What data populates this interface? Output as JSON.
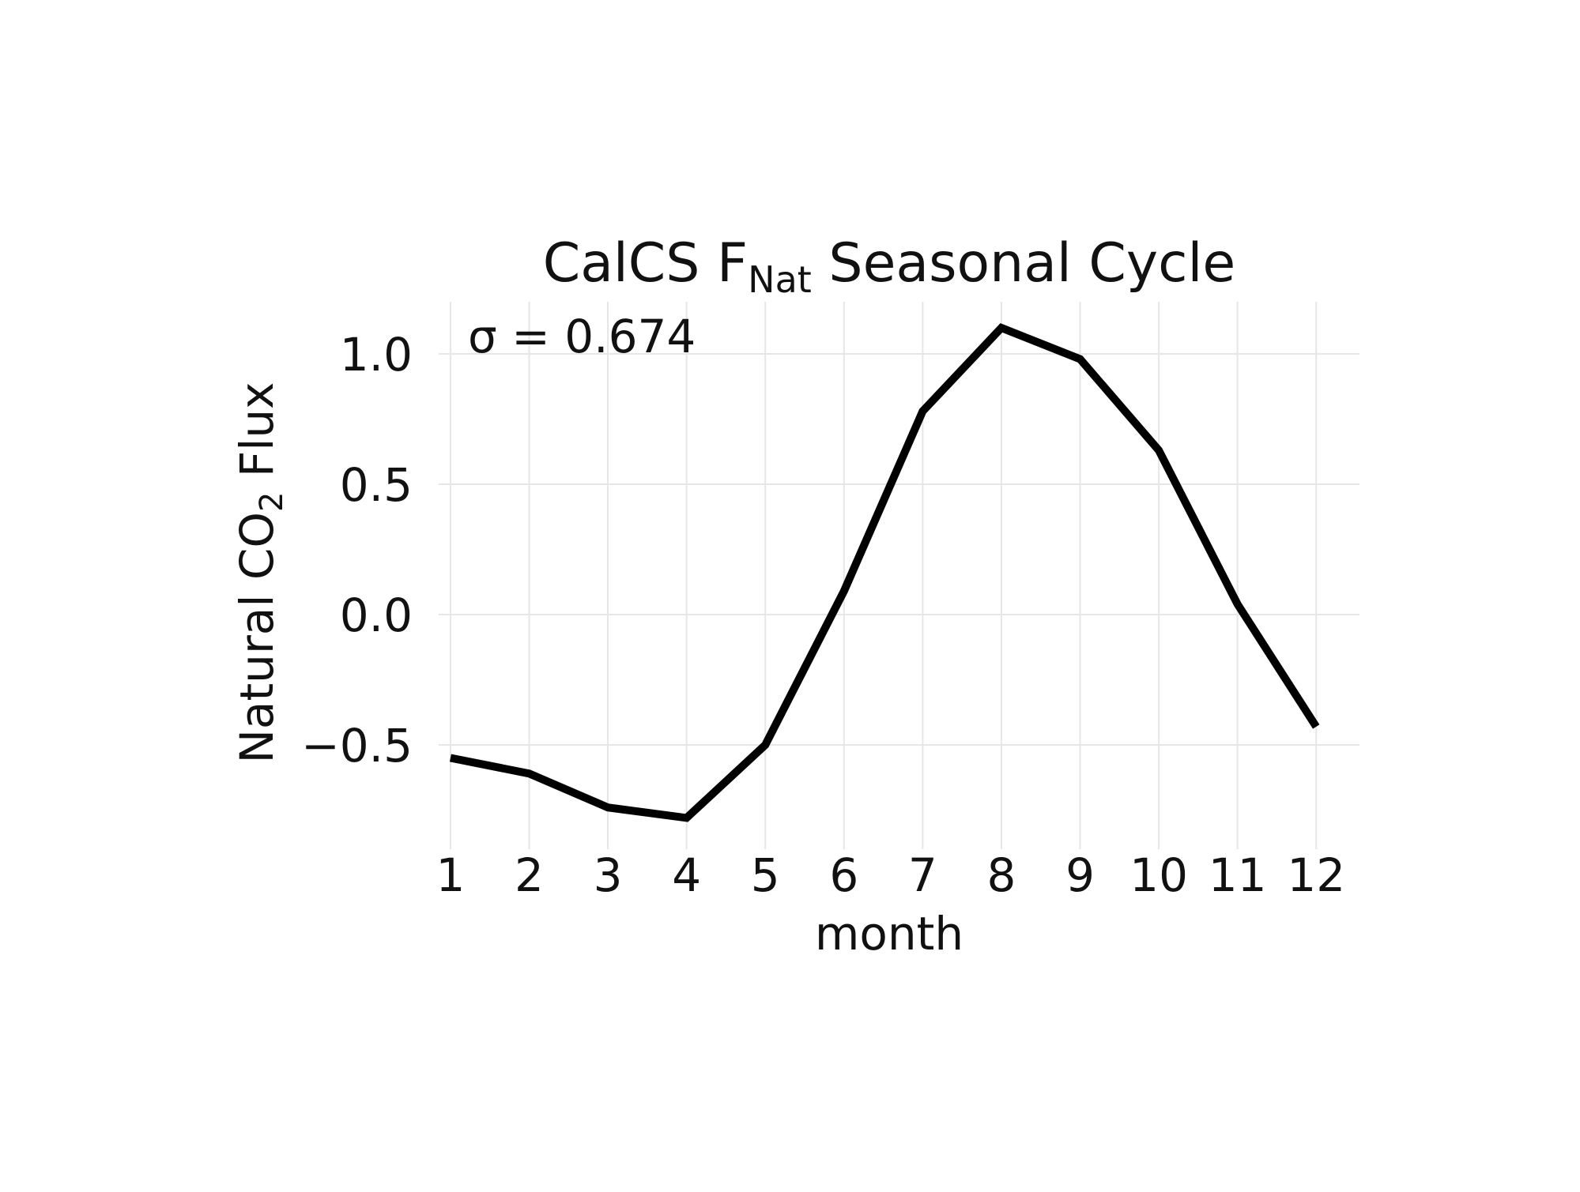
{
  "chart_data": {
    "type": "line",
    "title": "CalCS F",
    "title_subscript": "Nat",
    "title_suffix": " Seasonal Cycle",
    "xlabel": "month",
    "ylabel_prefix": "Natural CO",
    "ylabel_subscript": "2",
    "ylabel_suffix": " Flux",
    "annotation": "σ = 0.674",
    "x": [
      1,
      2,
      3,
      4,
      5,
      6,
      7,
      8,
      9,
      10,
      11,
      12
    ],
    "x_tick_labels": [
      "1",
      "2",
      "3",
      "4",
      "5",
      "6",
      "7",
      "8",
      "9",
      "10",
      "11",
      "12"
    ],
    "y_ticks": [
      -0.5,
      0.0,
      0.5,
      1.0
    ],
    "y_tick_labels": [
      "−0.5",
      "0.0",
      "0.5",
      "1.0"
    ],
    "series": [
      {
        "values": [
          -0.55,
          -0.61,
          -0.74,
          -0.78,
          -0.5,
          0.09,
          0.78,
          1.1,
          0.98,
          0.63,
          0.04,
          -0.43
        ],
        "color": "#000000"
      }
    ],
    "xlim": [
      0.85,
      12.55
    ],
    "ylim": [
      -0.9,
      1.2
    ],
    "grid": true,
    "grid_color": "#e6e6e6"
  }
}
